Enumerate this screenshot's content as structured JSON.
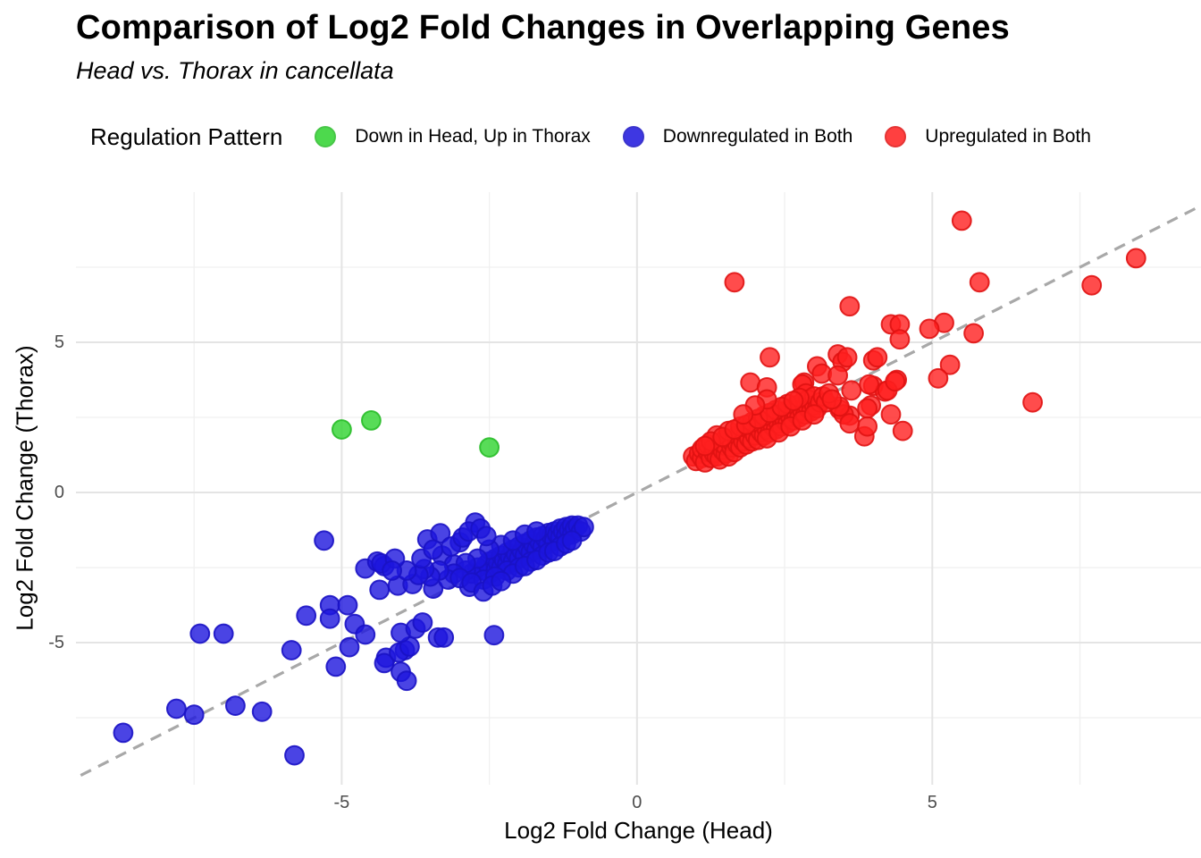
{
  "title": "Comparison of Log2 Fold Changes in Overlapping Genes",
  "subtitle": "Head vs. Thorax in cancellata",
  "legend": {
    "title": "Regulation Pattern",
    "items": [
      {
        "label": "Down in Head, Up in Thorax",
        "color": "#2ed32e",
        "stroke": "#29bd29"
      },
      {
        "label": "Downregulated in Both",
        "color": "#1d15dd",
        "stroke": "#1a12c4"
      },
      {
        "label": "Upregulated in Both",
        "color": "#ff1f1f",
        "stroke": "#e01212"
      }
    ]
  },
  "chart_data": {
    "type": "scatter",
    "title": "Comparison of Log2 Fold Changes in Overlapping Genes",
    "subtitle": "Head vs. Thorax in cancellata",
    "xlabel": "Log2 Fold Change (Head)",
    "ylabel": "Log2 Fold Change (Thorax)",
    "xlim": [
      -9.5,
      9.55
    ],
    "ylim": [
      -9.73,
      10.0
    ],
    "x_major_ticks": [
      -5,
      0,
      5
    ],
    "y_major_ticks": [
      5,
      0,
      -5
    ],
    "x_minor_ticks": [
      -7.5,
      -2.5,
      2.5,
      7.5
    ],
    "y_minor_ticks": [
      7.5,
      2.5,
      -2.5,
      -7.5
    ],
    "grid": {
      "major_color": "#e4e4e4",
      "minor_color": "#f0f0f0"
    },
    "identity_line": {
      "style": "dashed",
      "color": "#a8a8a8",
      "from": -9.42,
      "to": 9.5,
      "width": 3.2,
      "dash": "13 9"
    },
    "point_radius": 10.4,
    "point_opacity": 0.8,
    "legend_position": "top",
    "series": [
      {
        "name": "Down in Head, Up in Thorax",
        "color": "#2ed32e",
        "stroke": "#29bd29",
        "points": [
          [
            -5.0,
            2.1
          ],
          [
            -4.5,
            2.4
          ],
          [
            -2.5,
            1.5
          ]
        ]
      },
      {
        "name": "Downregulated in Both",
        "color": "#1d15dd",
        "stroke": "#1a12c4",
        "points": [
          [
            -8.7,
            -8.0
          ],
          [
            -7.8,
            -7.2
          ],
          [
            -7.5,
            -7.4
          ],
          [
            -6.8,
            -7.1
          ],
          [
            -6.35,
            -7.3
          ],
          [
            -5.8,
            -8.75
          ],
          [
            -5.85,
            -5.25
          ],
          [
            -5.1,
            -5.8
          ],
          [
            -4.87,
            -5.15
          ],
          [
            -4.25,
            -5.5
          ],
          [
            -3.93,
            -5.25
          ],
          [
            -4.28,
            -5.68
          ],
          [
            -4.03,
            -5.33
          ],
          [
            -4.0,
            -5.97
          ],
          [
            -3.9,
            -6.27
          ],
          [
            -3.85,
            -5.13
          ],
          [
            -2.42,
            -4.75
          ],
          [
            -7.4,
            -4.7
          ],
          [
            -7.0,
            -4.7
          ],
          [
            -5.6,
            -4.1
          ],
          [
            -5.2,
            -3.75
          ],
          [
            -5.2,
            -4.2
          ],
          [
            -4.9,
            -3.75
          ],
          [
            -4.78,
            -4.38
          ],
          [
            -4.6,
            -4.73
          ],
          [
            -4.0,
            -4.67
          ],
          [
            -3.75,
            -4.53
          ],
          [
            -3.63,
            -4.33
          ],
          [
            -3.37,
            -4.83
          ],
          [
            -3.27,
            -4.83
          ],
          [
            -5.3,
            -1.6
          ],
          [
            -4.6,
            -2.53
          ],
          [
            -4.4,
            -2.3
          ],
          [
            -4.28,
            -2.45
          ],
          [
            -4.33,
            -2.36
          ],
          [
            -3.55,
            -1.56
          ],
          [
            -3.33,
            -1.36
          ],
          [
            -2.74,
            -1.0
          ],
          [
            -3.0,
            -1.66
          ],
          [
            -3.3,
            -2.1
          ],
          [
            -3.1,
            -2.4
          ],
          [
            -4.05,
            -3.1
          ],
          [
            -3.8,
            -3.05
          ],
          [
            -3.45,
            -3.2
          ],
          [
            -2.84,
            -3.14
          ],
          [
            -4.36,
            -3.24
          ],
          [
            -2.6,
            -2.6
          ],
          [
            -2.55,
            -2.4
          ],
          [
            -2.5,
            -2.7
          ],
          [
            -2.5,
            -2.3
          ],
          [
            -2.45,
            -2.5
          ],
          [
            -2.4,
            -2.2
          ],
          [
            -2.4,
            -2.6
          ],
          [
            -2.35,
            -2.35
          ],
          [
            -2.3,
            -2.1
          ],
          [
            -2.3,
            -2.5
          ],
          [
            -2.25,
            -2.25
          ],
          [
            -2.2,
            -2.0
          ],
          [
            -2.2,
            -2.4
          ],
          [
            -2.15,
            -2.15
          ],
          [
            -2.1,
            -1.9
          ],
          [
            -2.1,
            -2.3
          ],
          [
            -2.05,
            -2.05
          ],
          [
            -2.0,
            -1.8
          ],
          [
            -2.0,
            -2.2
          ],
          [
            -1.95,
            -1.95
          ],
          [
            -1.9,
            -1.7
          ],
          [
            -1.9,
            -2.1
          ],
          [
            -1.85,
            -1.85
          ],
          [
            -1.8,
            -1.6
          ],
          [
            -1.8,
            -2.0
          ],
          [
            -1.75,
            -1.75
          ],
          [
            -1.7,
            -1.5
          ],
          [
            -1.7,
            -1.9
          ],
          [
            -1.65,
            -1.65
          ],
          [
            -1.6,
            -1.45
          ],
          [
            -1.6,
            -1.8
          ],
          [
            -1.55,
            -1.55
          ],
          [
            -1.5,
            -1.35
          ],
          [
            -1.5,
            -1.7
          ],
          [
            -1.45,
            -1.45
          ],
          [
            -1.4,
            -1.3
          ],
          [
            -1.4,
            -1.6
          ],
          [
            -1.35,
            -1.4
          ],
          [
            -1.3,
            -1.2
          ],
          [
            -1.3,
            -1.5
          ],
          [
            -1.25,
            -1.3
          ],
          [
            -1.2,
            -1.15
          ],
          [
            -1.2,
            -1.45
          ],
          [
            -1.15,
            -1.25
          ],
          [
            -1.1,
            -1.1
          ],
          [
            -1.1,
            -1.4
          ],
          [
            -1.05,
            -1.2
          ],
          [
            -1.0,
            -1.1
          ],
          [
            -0.95,
            -1.3
          ],
          [
            -0.9,
            -1.15
          ],
          [
            -2.7,
            -2.5
          ],
          [
            -2.8,
            -2.7
          ],
          [
            -2.9,
            -2.6
          ],
          [
            -2.6,
            -2.9
          ],
          [
            -2.2,
            -2.6
          ],
          [
            -2.0,
            -2.5
          ],
          [
            -1.8,
            -2.3
          ],
          [
            -1.6,
            -2.1
          ],
          [
            -2.4,
            -2.8
          ],
          [
            -2.1,
            -2.7
          ],
          [
            -1.9,
            -2.45
          ],
          [
            -1.7,
            -2.25
          ],
          [
            -1.5,
            -2.0
          ],
          [
            -1.3,
            -1.8
          ],
          [
            -1.4,
            -1.95
          ],
          [
            -1.2,
            -1.7
          ],
          [
            -1.1,
            -1.6
          ],
          [
            -2.3,
            -1.75
          ],
          [
            -2.1,
            -1.6
          ],
          [
            -1.9,
            -1.4
          ],
          [
            -1.7,
            -1.3
          ],
          [
            -2.5,
            -1.9
          ],
          [
            -2.7,
            -2.2
          ],
          [
            -2.9,
            -2.35
          ],
          [
            -3.1,
            -2.7
          ],
          [
            -3.2,
            -2.9
          ],
          [
            -3.0,
            -2.85
          ],
          [
            -2.8,
            -3.0
          ],
          [
            -2.6,
            -3.3
          ],
          [
            -2.45,
            -3.1
          ],
          [
            -2.3,
            -2.95
          ],
          [
            -3.35,
            -2.6
          ],
          [
            -3.5,
            -2.8
          ],
          [
            -3.6,
            -2.55
          ],
          [
            -3.7,
            -2.75
          ],
          [
            -3.9,
            -2.6
          ],
          [
            -4.1,
            -2.2
          ],
          [
            -4.15,
            -2.6
          ],
          [
            -3.65,
            -2.2
          ],
          [
            -3.45,
            -1.9
          ],
          [
            -3.15,
            -1.8
          ],
          [
            -2.95,
            -1.5
          ],
          [
            -2.85,
            -1.3
          ],
          [
            -2.65,
            -1.2
          ],
          [
            -2.55,
            -1.45
          ]
        ]
      },
      {
        "name": "Upregulated in Both",
        "color": "#ff1f1f",
        "stroke": "#e01212",
        "points": [
          [
            5.5,
            9.05
          ],
          [
            8.45,
            7.8
          ],
          [
            5.8,
            7.0
          ],
          [
            7.7,
            6.9
          ],
          [
            1.65,
            7.0
          ],
          [
            3.6,
            6.2
          ],
          [
            5.2,
            5.65
          ],
          [
            4.95,
            5.45
          ],
          [
            5.7,
            5.3
          ],
          [
            4.3,
            5.6
          ],
          [
            4.45,
            5.6
          ],
          [
            4.45,
            5.1
          ],
          [
            5.3,
            4.25
          ],
          [
            5.1,
            3.8
          ],
          [
            6.7,
            3.0
          ],
          [
            2.25,
            4.5
          ],
          [
            3.4,
            4.6
          ],
          [
            3.05,
            4.2
          ],
          [
            3.13,
            3.96
          ],
          [
            1.92,
            3.66
          ],
          [
            2.2,
            3.5
          ],
          [
            2.83,
            3.66
          ],
          [
            3.48,
            4.35
          ],
          [
            4.0,
            4.4
          ],
          [
            3.4,
            3.9
          ],
          [
            3.63,
            3.4
          ],
          [
            4.0,
            3.55
          ],
          [
            4.2,
            3.36
          ],
          [
            4.4,
            3.75
          ],
          [
            3.96,
            2.9
          ],
          [
            3.43,
            2.77
          ],
          [
            3.6,
            2.56
          ],
          [
            4.3,
            2.6
          ],
          [
            4.5,
            2.05
          ],
          [
            3.85,
            1.87
          ],
          [
            3.56,
            4.5
          ],
          [
            4.07,
            4.5
          ],
          [
            2.8,
            3.6
          ],
          [
            2.86,
            3.3
          ],
          [
            3.93,
            3.6
          ],
          [
            4.24,
            3.4
          ],
          [
            4.37,
            3.7
          ],
          [
            3.9,
            2.2
          ],
          [
            3.5,
            2.6
          ],
          [
            3.43,
            2.86
          ],
          [
            3.9,
            2.8
          ],
          [
            3.6,
            2.3
          ],
          [
            0.95,
            1.2
          ],
          [
            1.0,
            1.05
          ],
          [
            1.05,
            1.3
          ],
          [
            1.1,
            1.15
          ],
          [
            1.1,
            1.45
          ],
          [
            1.15,
            1.0
          ],
          [
            1.2,
            1.35
          ],
          [
            1.2,
            1.6
          ],
          [
            1.25,
            1.15
          ],
          [
            1.3,
            1.3
          ],
          [
            1.3,
            1.5
          ],
          [
            1.35,
            1.2
          ],
          [
            1.4,
            1.65
          ],
          [
            1.4,
            1.1
          ],
          [
            1.45,
            1.4
          ],
          [
            1.5,
            1.3
          ],
          [
            1.5,
            1.55
          ],
          [
            1.5,
            1.8
          ],
          [
            1.55,
            1.2
          ],
          [
            1.6,
            1.5
          ],
          [
            1.6,
            1.7
          ],
          [
            1.65,
            1.35
          ],
          [
            1.7,
            1.6
          ],
          [
            1.7,
            1.9
          ],
          [
            1.75,
            1.5
          ],
          [
            1.8,
            1.7
          ],
          [
            1.8,
            2.0
          ],
          [
            1.85,
            1.6
          ],
          [
            1.9,
            1.8
          ],
          [
            1.9,
            2.1
          ],
          [
            1.95,
            1.7
          ],
          [
            2.0,
            1.9
          ],
          [
            2.0,
            2.2
          ],
          [
            2.05,
            1.75
          ],
          [
            2.1,
            2.0
          ],
          [
            2.1,
            2.3
          ],
          [
            2.15,
            1.9
          ],
          [
            2.2,
            2.1
          ],
          [
            2.2,
            2.4
          ],
          [
            2.25,
            2.0
          ],
          [
            2.3,
            2.2
          ],
          [
            2.3,
            2.5
          ],
          [
            2.35,
            2.1
          ],
          [
            2.4,
            2.3
          ],
          [
            2.4,
            2.6
          ],
          [
            2.45,
            2.2
          ],
          [
            2.5,
            2.4
          ],
          [
            2.5,
            2.7
          ],
          [
            2.55,
            2.3
          ],
          [
            2.6,
            2.5
          ],
          [
            2.6,
            2.8
          ],
          [
            2.65,
            2.4
          ],
          [
            2.7,
            2.6
          ],
          [
            2.7,
            2.9
          ],
          [
            2.75,
            2.5
          ],
          [
            2.8,
            2.7
          ],
          [
            2.8,
            3.0
          ],
          [
            2.85,
            2.6
          ],
          [
            2.9,
            2.8
          ],
          [
            2.9,
            3.1
          ],
          [
            2.95,
            2.7
          ],
          [
            3.0,
            2.9
          ],
          [
            3.0,
            3.2
          ],
          [
            3.05,
            2.8
          ],
          [
            3.1,
            3.0
          ],
          [
            3.15,
            3.2
          ],
          [
            3.2,
            3.0
          ],
          [
            3.25,
            3.3
          ],
          [
            3.3,
            3.1
          ],
          [
            1.35,
            1.9
          ],
          [
            1.55,
            2.05
          ],
          [
            1.75,
            2.2
          ],
          [
            1.95,
            2.35
          ],
          [
            2.15,
            2.55
          ],
          [
            2.35,
            2.75
          ],
          [
            2.55,
            2.95
          ],
          [
            2.75,
            3.15
          ],
          [
            1.25,
            1.7
          ],
          [
            1.45,
            1.85
          ],
          [
            1.65,
            2.1
          ],
          [
            1.85,
            2.25
          ],
          [
            2.05,
            2.45
          ],
          [
            2.25,
            2.65
          ],
          [
            2.45,
            2.85
          ],
          [
            2.65,
            3.05
          ],
          [
            1.15,
            1.55
          ],
          [
            2.2,
            1.8
          ],
          [
            2.4,
            2.0
          ],
          [
            2.6,
            2.2
          ],
          [
            2.8,
            2.4
          ],
          [
            3.0,
            2.6
          ],
          [
            2.2,
            3.1
          ],
          [
            2.0,
            2.9
          ],
          [
            1.8,
            2.6
          ]
        ]
      }
    ]
  }
}
